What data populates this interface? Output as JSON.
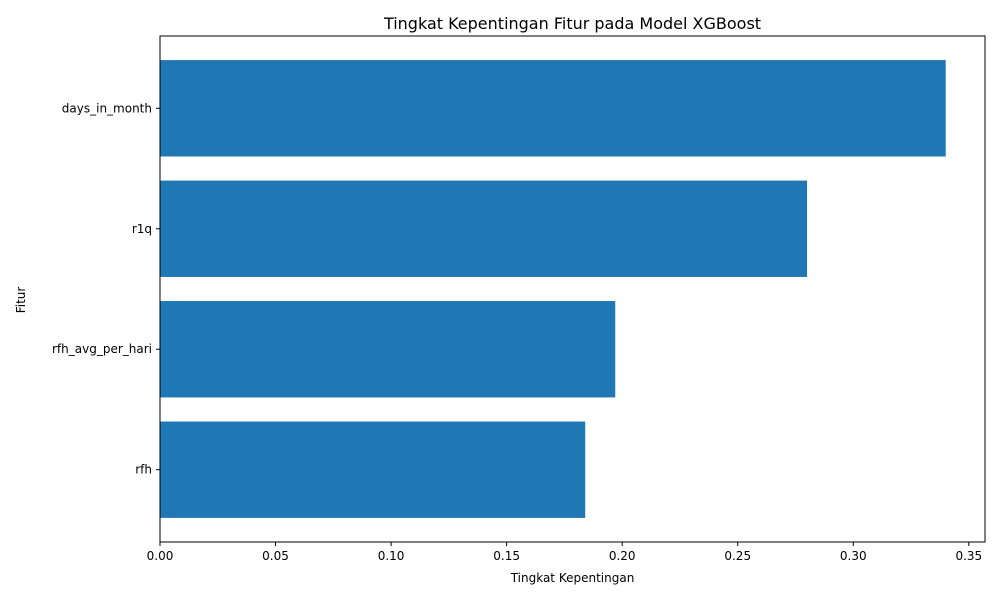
{
  "chart_data": {
    "type": "bar",
    "orientation": "horizontal",
    "title": "Tingkat Kepentingan Fitur pada Model XGBoost",
    "xlabel": "Tingkat Kepentingan",
    "ylabel": "Fitur",
    "categories": [
      "days_in_month",
      "r1q",
      "rfh_avg_per_hari",
      "rfh"
    ],
    "values": [
      0.34,
      0.28,
      0.197,
      0.184
    ],
    "xlim": [
      0,
      0.357
    ],
    "xticks": [
      0.0,
      0.05,
      0.1,
      0.15,
      0.2,
      0.25,
      0.3,
      0.35
    ],
    "xtick_labels": [
      "0.00",
      "0.05",
      "0.10",
      "0.15",
      "0.20",
      "0.25",
      "0.30",
      "0.35"
    ],
    "grid": false,
    "bar_color": "#1f77b4"
  }
}
